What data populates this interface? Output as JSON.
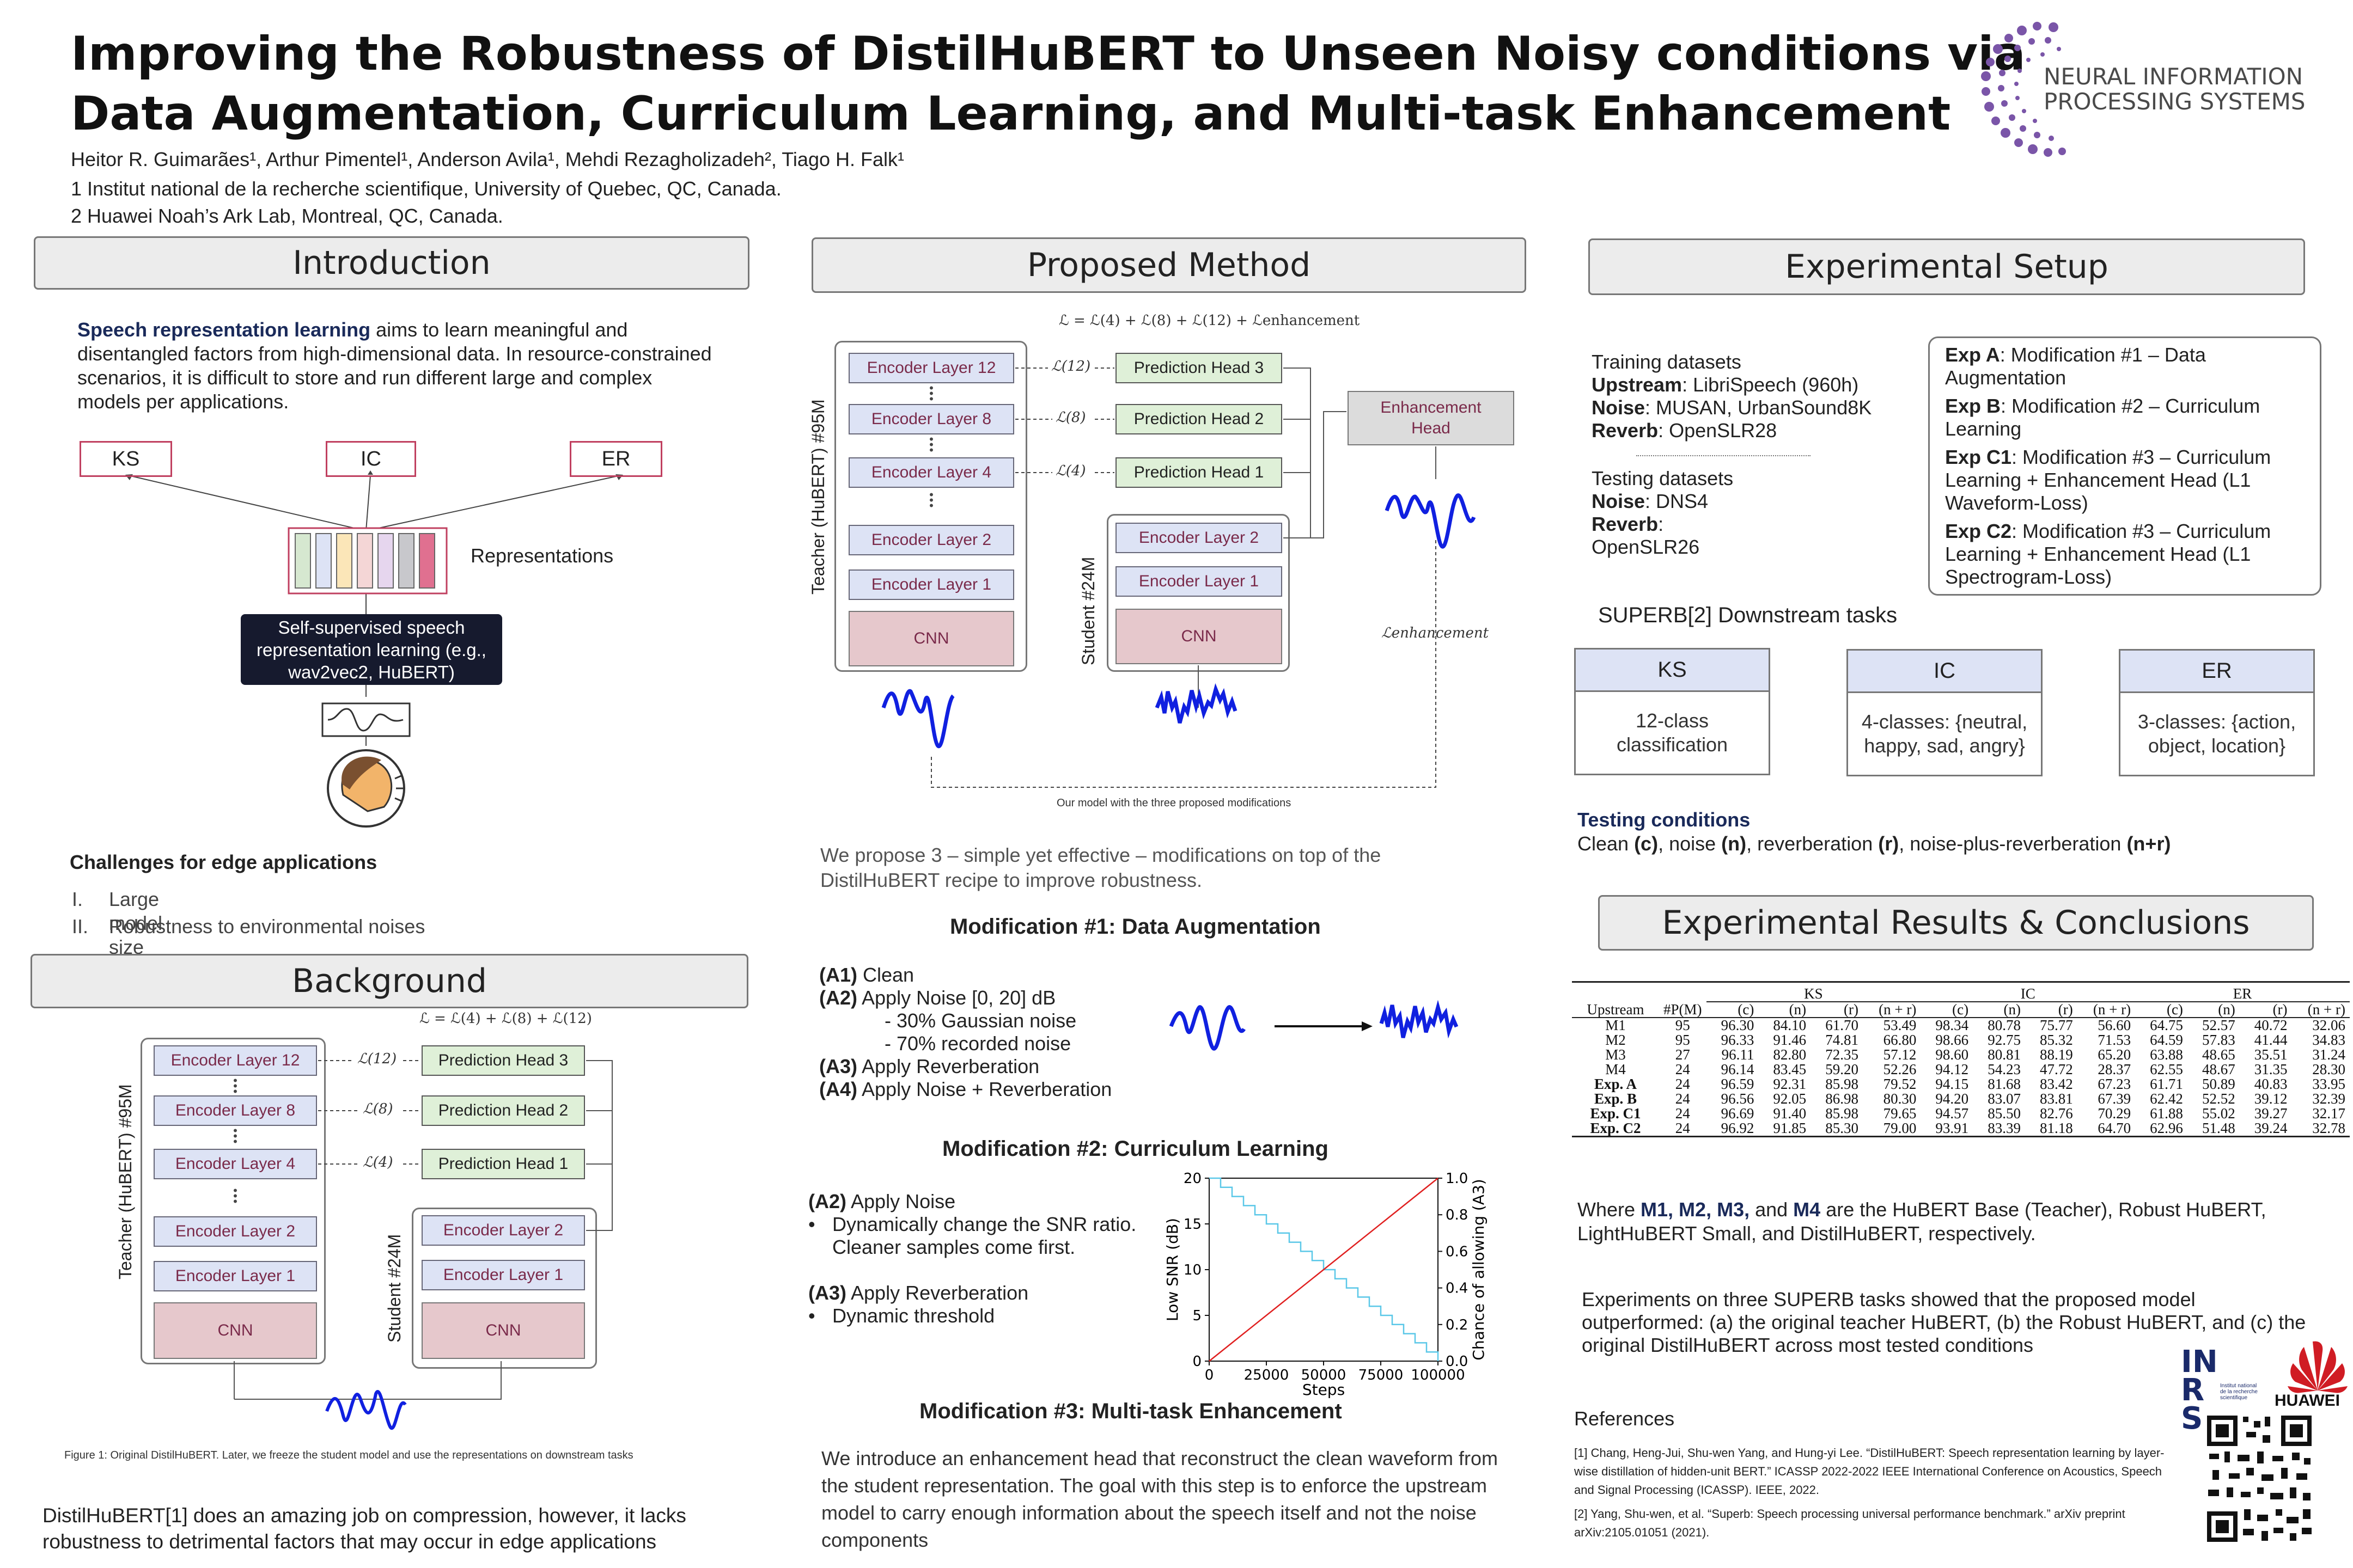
{
  "header": {
    "title_l1": "Improving the Robustness of DistilHuBERT to Unseen Noisy conditions via",
    "title_l2": "Data Augmentation, Curriculum Learning, and Multi-task Enhancement",
    "authors": "Heitor R. Guimarães¹, Arthur Pimentel¹,  Anderson Avila¹, Mehdi Rezagholizadeh², Tiago H. Falk¹",
    "affil1": "1 Institut national de la recherche scientifique, University of Quebec, QC, Canada.",
    "affil2": "2 Huawei Noah’s Ark Lab, Montreal, QC, Canada.",
    "logo_l1": "NEURAL INFORMATION",
    "logo_l2": "PROCESSING SYSTEMS"
  },
  "sections": {
    "intro": "Introduction",
    "background": "Background",
    "method": "Proposed Method",
    "setup": "Experimental Setup",
    "results": "Experimental Results & Conclusions"
  },
  "intro": {
    "lead": "Speech representation learning",
    "text": " aims to learn meaningful and disentangled factors from high-dimensional data. In resource-constrained scenarios, it is difficult to store and run different large and complex models per applications.",
    "tasks": [
      "KS",
      "IC",
      "ER"
    ],
    "repr_label": "Representations",
    "ssl_box": "Self-supervised speech representation learning (e.g., wav2vec2, HuBERT)",
    "challenges_title": "Challenges for edge applications",
    "challenges": [
      {
        "num": "I.",
        "text": "Large model size"
      },
      {
        "num": "II.",
        "text": "Robustness to environmental noises"
      }
    ]
  },
  "diagram": {
    "enc12": "Encoder Layer 12",
    "enc8": "Encoder Layer 8",
    "enc4": "Encoder Layer 4",
    "enc2": "Encoder Layer 2",
    "enc1": "Encoder Layer 1",
    "cnn": "CNN",
    "ph3": "Prediction Head 3",
    "ph2": "Prediction Head 2",
    "ph1": "Prediction Head 1",
    "teacher": "Teacher (HuBERT) #95M",
    "student": "Student #24M",
    "enh_head": "Enhancement Head",
    "loss_enh": "ℒenhancement",
    "loss12": "ℒ(12)",
    "loss8": "ℒ(8)",
    "loss4": "ℒ(4)",
    "eq_method": "ℒ = ℒ(4) + ℒ(8) + ℒ(12) + ℒenhancement",
    "eq_bg": "ℒ = ℒ(4) + ℒ(8) + ℒ(12)",
    "caption_method": "Our model with the three proposed modifications",
    "caption_bg": "Figure 1: Original DistilHuBERT. Later, we freeze the student model and use the representations on downstream tasks"
  },
  "background": {
    "text": "DistilHuBERT[1] does an amazing job on compression, however, it lacks robustness to detrimental factors that may occur in edge applications"
  },
  "method": {
    "intro": "We propose 3 – simple yet effective – modifications on top of the DistilHuBERT recipe to improve robustness.",
    "mod1_title": "Modification #1: Data Augmentation",
    "mod1_items": [
      {
        "k": "(A1)",
        "v": " Clean"
      },
      {
        "k": "(A2)",
        "v": " Apply Noise [0, 20] dB"
      },
      {
        "k": "",
        "v": "- 30% Gaussian noise"
      },
      {
        "k": "",
        "v": "- 70% recorded noise"
      },
      {
        "k": "(A3)",
        "v": " Apply Reverberation"
      },
      {
        "k": "(A4)",
        "v": " Apply Noise + Reverberation"
      }
    ],
    "mod2_title": "Modification #2: Curriculum Learning",
    "mod2_a2": "(A2)",
    "mod2_a2_t": " Apply Noise",
    "mod2_b1": "Dynamically change the SNR ratio. Cleaner samples come first.",
    "mod2_a3": "(A3)",
    "mod2_a3_t": " Apply Reverberation",
    "mod2_b2": "Dynamic threshold",
    "mod3_title": "Modification #3: Multi-task Enhancement",
    "mod3_text": "We introduce an enhancement head that reconstruct the clean waveform from the student representation. The goal with this step is to enforce the upstream model to carry enough information about the speech itself and not the noise components"
  },
  "chart_data": {
    "type": "line",
    "xlabel": "Steps",
    "ylabel": "Low SNR (dB)",
    "y2label": "Chance of allowing (A3)",
    "xlim": [
      0,
      100000
    ],
    "ylim": [
      0,
      20
    ],
    "y2lim": [
      0,
      1.0
    ],
    "xticks": [
      0,
      25000,
      50000,
      75000,
      100000
    ],
    "xtick_labels": [
      "0",
      "25000",
      "50000",
      "75000",
      "100000"
    ],
    "yticks": [
      0,
      5,
      10,
      15,
      20
    ],
    "y2ticks": [
      0.0,
      0.2,
      0.4,
      0.6,
      0.8,
      1.0
    ],
    "y2tick_labels": [
      "0.0",
      "0.2",
      "0.4",
      "0.6",
      "0.8",
      "1.0"
    ],
    "series": [
      {
        "name": "Low SNR (dB)",
        "axis": "left",
        "style": "step",
        "color": "#5bc8e8",
        "x": [
          0,
          5000,
          10000,
          15000,
          20000,
          25000,
          30000,
          35000,
          40000,
          45000,
          50000,
          55000,
          60000,
          65000,
          70000,
          75000,
          80000,
          85000,
          90000,
          95000,
          100000
        ],
        "values": [
          20,
          19,
          18,
          17,
          16,
          15,
          14,
          13,
          12,
          11,
          10,
          9,
          8,
          7,
          6,
          5,
          4,
          3,
          2,
          1,
          0
        ]
      },
      {
        "name": "Chance of allowing (A3)",
        "axis": "right",
        "style": "line",
        "color": "#e02020",
        "x": [
          0,
          100000
        ],
        "values": [
          0.0,
          1.0
        ]
      }
    ]
  },
  "setup": {
    "train_title": "Training datasets",
    "train": [
      {
        "k": "Upstream",
        "v": ": LibriSpeech (960h)"
      },
      {
        "k": "Noise",
        "v": ": MUSAN, UrbanSound8K"
      },
      {
        "k": "Reverb",
        "v": ": OpenSLR28"
      }
    ],
    "test_title": "Testing datasets",
    "test": [
      {
        "k": "Noise",
        "v": ": DNS4"
      },
      {
        "k": "Reverb",
        "v": ":"
      }
    ],
    "test_reverb_val": "OpenSLR26",
    "exps": [
      {
        "k": "Exp A",
        "v": ": Modification #1 – Data Augmentation"
      },
      {
        "k": "Exp B",
        "v": ": Modification #2 – Curriculum Learning"
      },
      {
        "k": "Exp C1",
        "v": ": Modification #3 – Curriculum Learning + Enhancement Head (L1 Waveform-Loss)"
      },
      {
        "k": "Exp C2",
        "v": ": Modification #3 – Curriculum Learning + Enhancement Head (L1 Spectrogram-Loss)"
      }
    ],
    "downstream_title": "SUPERB[2] Downstream tasks",
    "tasks": [
      {
        "name": "KS",
        "desc": "12-class classification"
      },
      {
        "name": "IC",
        "desc": "4-classes: {neutral, happy, sad, angry}"
      },
      {
        "name": "ER",
        "desc": "3-classes: {action, object, location}"
      }
    ],
    "cond_title": "Testing conditions",
    "cond": [
      {
        "t": "Clean ",
        "b": "(c)"
      },
      {
        "t": ", noise ",
        "b": "(n)"
      },
      {
        "t": ", reverberation ",
        "b": "(r)"
      },
      {
        "t": ", noise-plus-reverberation ",
        "b": "(n+r)"
      }
    ]
  },
  "table": {
    "groups": [
      "KS",
      "IC",
      "ER"
    ],
    "head": [
      "Upstream",
      "#P(M)",
      "(c)",
      "(n)",
      "(r)",
      "(n + r)",
      "(c)",
      "(n)",
      "(r)",
      "(n + r)",
      "(c)",
      "(n)",
      "(r)",
      "(n + r)"
    ],
    "rows": [
      [
        "M1",
        "95",
        "96.30",
        "84.10",
        "61.70",
        "53.49",
        "98.34",
        "80.78",
        "75.77",
        "56.60",
        "64.75",
        "52.57",
        "40.72",
        "32.06"
      ],
      [
        "M2",
        "95",
        "96.33",
        "91.46",
        "74.81",
        "66.80",
        "98.66",
        "92.75",
        "85.32",
        "71.53",
        "64.59",
        "57.83",
        "41.44",
        "34.83"
      ],
      [
        "M3",
        "27",
        "96.11",
        "82.80",
        "72.35",
        "57.12",
        "98.60",
        "80.81",
        "88.19",
        "65.20",
        "63.88",
        "48.65",
        "35.51",
        "31.24"
      ],
      [
        "M4",
        "24",
        "96.14",
        "83.45",
        "59.20",
        "52.26",
        "94.12",
        "54.23",
        "47.72",
        "28.37",
        "62.55",
        "48.67",
        "31.35",
        "28.30"
      ],
      [
        "Exp. A",
        "24",
        "96.59",
        "92.31",
        "85.98",
        "79.52",
        "94.15",
        "81.68",
        "83.42",
        "67.23",
        "61.71",
        "50.89",
        "40.83",
        "33.95"
      ],
      [
        "Exp. B",
        "24",
        "96.56",
        "92.05",
        "86.98",
        "80.30",
        "94.20",
        "83.07",
        "83.81",
        "67.39",
        "62.42",
        "52.52",
        "39.12",
        "32.39"
      ],
      [
        "Exp. C1",
        "24",
        "96.69",
        "91.40",
        "85.98",
        "79.65",
        "94.57",
        "85.50",
        "82.76",
        "70.29",
        "61.88",
        "55.02",
        "39.27",
        "32.17"
      ],
      [
        "Exp. C2",
        "24",
        "96.92",
        "91.85",
        "85.30",
        "79.00",
        "93.91",
        "83.39",
        "81.18",
        "64.70",
        "62.96",
        "51.48",
        "39.24",
        "32.78"
      ]
    ]
  },
  "results": {
    "where_pre": "Where ",
    "m1": "M1, M2, M3,",
    "and": " and ",
    "m4": "M4",
    "where_post": " are the HuBERT Base (Teacher), Robust HuBERT, LightHuBERT Small, and DistilHuBERT, respectively.",
    "conclusion": "Experiments on three SUPERB tasks showed that the proposed model outperformed: (a) the original teacher HuBERT, (b) the Robust HuBERT, and (c) the original DistilHuBERT across most tested conditions",
    "refs_title": "References",
    "ref1": "[1] Chang, Heng-Jui, Shu-wen Yang, and Hung-yi Lee. “DistilHuBERT: Speech representation learning by layer-wise distillation of hidden-unit BERT.” ICASSP 2022-2022 IEEE International Conference on Acoustics, Speech and Signal Processing (ICASSP). IEEE, 2022.",
    "ref2": "[2] Yang, Shu-wen, et al. “Superb: Speech processing universal performance benchmark.” arXiv preprint arXiv:2105.01051 (2021).",
    "inrs": "INRS",
    "inrs_sub": "Institut national de la recherche scientifique",
    "huawei": "HUAWEI"
  }
}
